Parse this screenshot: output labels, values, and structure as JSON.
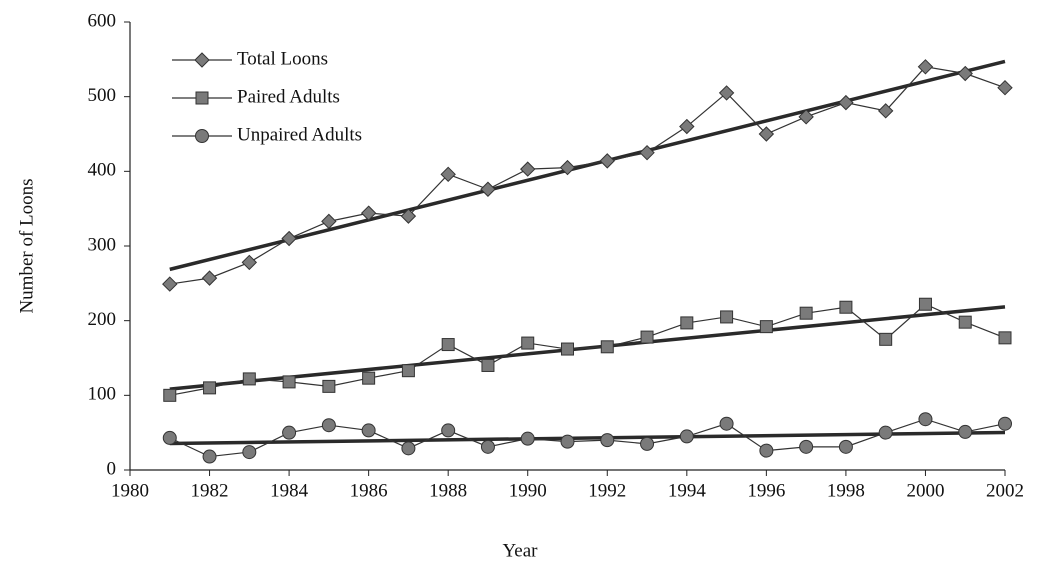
{
  "chart_data": {
    "type": "line",
    "x_label": "Year",
    "y_label": "Number of Loons",
    "x": [
      1981,
      1982,
      1983,
      1984,
      1985,
      1986,
      1987,
      1988,
      1989,
      1990,
      1991,
      1992,
      1993,
      1994,
      1995,
      1996,
      1997,
      1998,
      1999,
      2000,
      2001,
      2002
    ],
    "series": [
      {
        "name": "Total Loons",
        "color": "#333333",
        "marker": "diamond",
        "values": [
          249,
          257,
          278,
          310,
          333,
          344,
          340,
          396,
          376,
          403,
          405,
          414,
          425,
          460,
          505,
          450,
          473,
          492,
          481,
          540,
          531,
          512
        ]
      },
      {
        "name": "Paired Adults",
        "color": "#333333",
        "marker": "square",
        "values": [
          100,
          110,
          122,
          118,
          112,
          123,
          133,
          168,
          140,
          170,
          162,
          165,
          178,
          197,
          205,
          192,
          210,
          218,
          175,
          222,
          198,
          177
        ]
      },
      {
        "name": "Unpaired Adults",
        "color": "#333333",
        "marker": "circle",
        "values": [
          43,
          18,
          24,
          50,
          60,
          53,
          29,
          53,
          31,
          42,
          38,
          40,
          35,
          45,
          62,
          26,
          31,
          31,
          50,
          68,
          51,
          62
        ]
      }
    ],
    "xlim": [
      1980,
      2002
    ],
    "xticks": [
      1980,
      1982,
      1984,
      1986,
      1988,
      1990,
      1992,
      1994,
      1996,
      1998,
      2000,
      2002
    ],
    "ylim": [
      0,
      600
    ],
    "yticks": [
      0,
      100,
      200,
      300,
      400,
      500,
      600
    ],
    "trendline": true,
    "legend": "top-left",
    "grid": false
  }
}
